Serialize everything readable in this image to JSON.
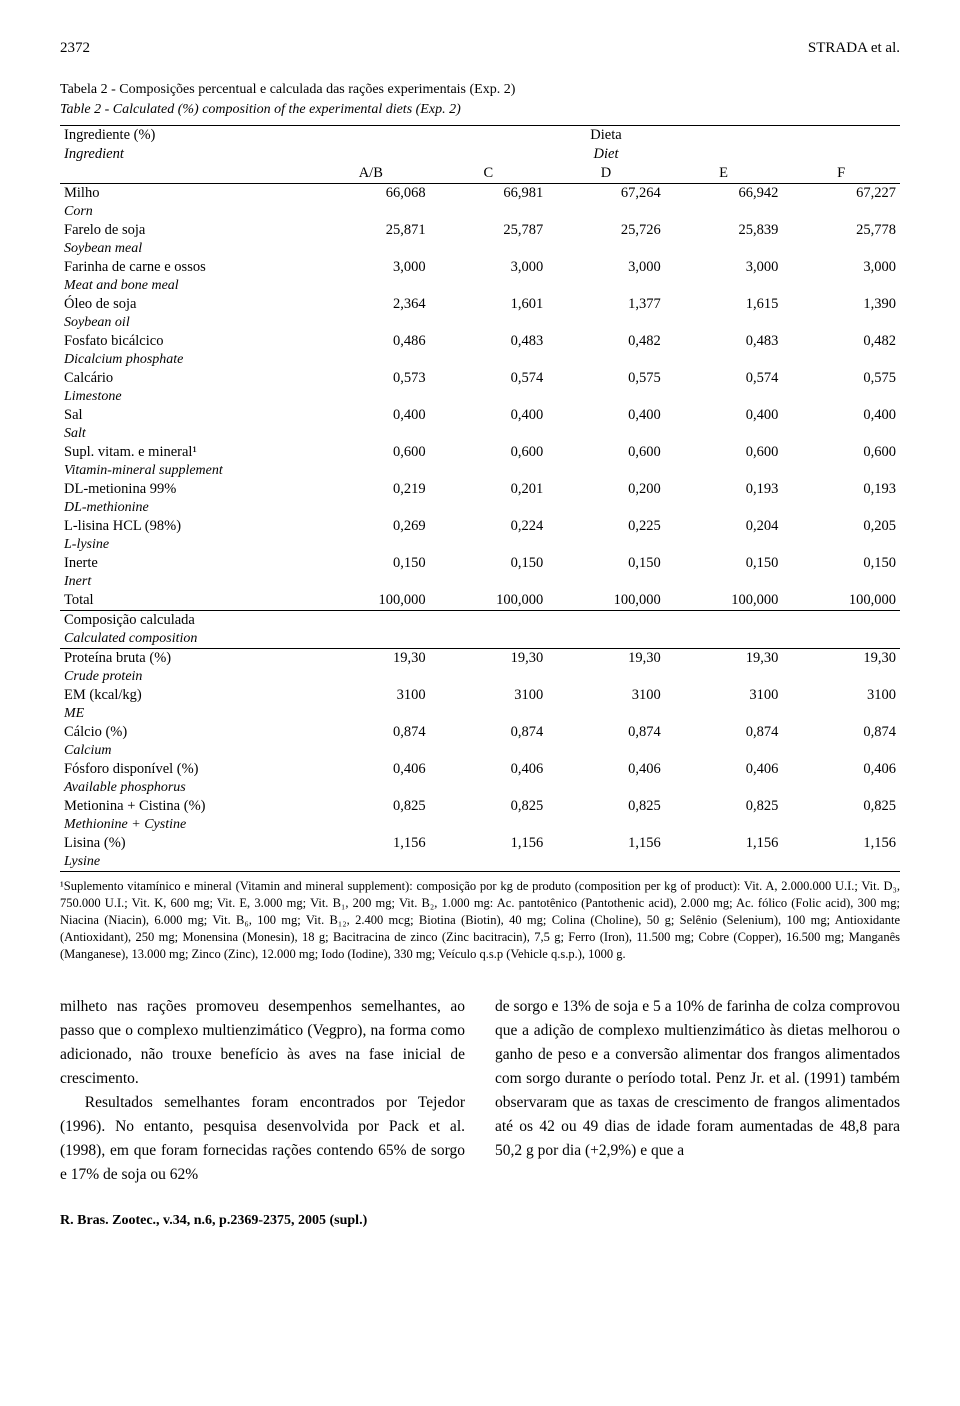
{
  "header": {
    "page_number": "2372",
    "authors": "STRADA et al."
  },
  "caption": {
    "pt": "Tabela 2 - Composições percentual e calculada das rações experimentais (Exp. 2)",
    "en": "Table 2   - Calculated (%) composition of the experimental diets (Exp. 2)"
  },
  "table_header": {
    "ingredient_pt": "Ingrediente (%)",
    "ingredient_en": "Ingredient",
    "diet_pt": "Dieta",
    "diet_en": "Diet",
    "cols": [
      "A/B",
      "C",
      "D",
      "E",
      "F"
    ]
  },
  "rows": [
    {
      "pt": "Milho",
      "en": "Corn",
      "v": [
        "66,068",
        "66,981",
        "67,264",
        "66,942",
        "67,227"
      ]
    },
    {
      "pt": "Farelo de soja",
      "en": "Soybean meal",
      "v": [
        "25,871",
        "25,787",
        "25,726",
        "25,839",
        "25,778"
      ]
    },
    {
      "pt": "Farinha de carne e ossos",
      "en": "Meat and bone meal",
      "v": [
        "3,000",
        "3,000",
        "3,000",
        "3,000",
        "3,000"
      ]
    },
    {
      "pt": "Óleo de soja",
      "en": "Soybean oil",
      "v": [
        "2,364",
        "1,601",
        "1,377",
        "1,615",
        "1,390"
      ]
    },
    {
      "pt": "Fosfato bicálcico",
      "en": "Dicalcium phosphate",
      "v": [
        "0,486",
        "0,483",
        "0,482",
        "0,483",
        "0,482"
      ]
    },
    {
      "pt": "Calcário",
      "en": "Limestone",
      "v": [
        "0,573",
        "0,574",
        "0,575",
        "0,574",
        "0,575"
      ]
    },
    {
      "pt": "Sal",
      "en": "Salt",
      "v": [
        "0,400",
        "0,400",
        "0,400",
        "0,400",
        "0,400"
      ]
    },
    {
      "pt": "Supl. vitam. e mineral¹",
      "en": "Vitamin-mineral supplement",
      "v": [
        "0,600",
        "0,600",
        "0,600",
        "0,600",
        "0,600"
      ]
    },
    {
      "pt": "DL-metionina 99%",
      "en": "DL-methionine",
      "v": [
        "0,219",
        "0,201",
        "0,200",
        "0,193",
        "0,193"
      ]
    },
    {
      "pt": "L-lisina HCL (98%)",
      "en": "L-lysine",
      "v": [
        "0,269",
        "0,224",
        "0,225",
        "0,204",
        "0,205"
      ]
    },
    {
      "pt": "Inerte",
      "en": "Inert",
      "v": [
        "0,150",
        "0,150",
        "0,150",
        "0,150",
        "0,150"
      ]
    },
    {
      "pt": "Total",
      "en": "",
      "v": [
        "100,000",
        "100,000",
        "100,000",
        "100,000",
        "100,000"
      ]
    }
  ],
  "calc_section": {
    "pt": "Composição calculada",
    "en": "Calculated composition"
  },
  "calc_rows": [
    {
      "pt": "Proteína bruta (%)",
      "en": "Crude protein",
      "v": [
        "19,30",
        "19,30",
        "19,30",
        "19,30",
        "19,30"
      ]
    },
    {
      "pt": "EM (kcal/kg)",
      "en": "ME",
      "v": [
        "3100",
        "3100",
        "3100",
        "3100",
        "3100"
      ]
    },
    {
      "pt": "Cálcio (%)",
      "en": "Calcium",
      "v": [
        "0,874",
        "0,874",
        "0,874",
        "0,874",
        "0,874"
      ]
    },
    {
      "pt": "Fósforo disponível (%)",
      "en": "Available phosphorus",
      "v": [
        "0,406",
        "0,406",
        "0,406",
        "0,406",
        "0,406"
      ]
    },
    {
      "pt": "Metionina + Cistina (%)",
      "en": "Methionine + Cystine",
      "v": [
        "0,825",
        "0,825",
        "0,825",
        "0,825",
        "0,825"
      ]
    },
    {
      "pt": "Lisina (%)",
      "en": "Lysine",
      "v": [
        "1,156",
        "1,156",
        "1,156",
        "1,156",
        "1,156"
      ]
    }
  ],
  "footnote": "¹Suplemento vitamínico e mineral (Vitamin and mineral supplement): composição por kg de produto (composition per kg of product): Vit. A, 2.000.000 U.I.; Vit. D₃, 750.000 U.I.; Vit. K, 600 mg; Vit. E, 3.000 mg; Vit. B₁, 200 mg; Vit. B₂, 1.000 mg: Ac. pantotênico (Pantothenic acid), 2.000 mg; Ac. fólico (Folic acid), 300 mg; Niacina (Niacin), 6.000 mg; Vit. B₆, 100 mg; Vit. B₁₂, 2.400 mcg; Biotina (Biotin), 40 mg; Colina (Choline), 50 g; Selênio (Selenium), 100 mg; Antioxidante (Antioxidant), 250 mg; Monensina (Monesin), 18 g; Bacitracina de zinco (Zinc bacitracin), 7,5 g; Ferro (Iron), 11.500 mg; Cobre (Copper), 16.500 mg; Manganês (Manganese), 13.000 mg; Zinco (Zinc), 12.000 mg; Iodo (Iodine), 330 mg; Veículo q.s.p (Vehicle q.s.p.), 1000 g.",
  "body": {
    "left": [
      "milheto nas rações promoveu desempenhos semelhantes, ao passo que o complexo multienzimático (Vegpro), na forma como adicionado, não trouxe benefício às aves na fase inicial de crescimento.",
      "Resultados semelhantes foram encontrados por Tejedor (1996). No entanto, pesquisa desenvolvida por Pack et al. (1998), em que foram fornecidas rações contendo 65% de sorgo e 17% de soja ou 62%"
    ],
    "right": [
      "de sorgo e 13% de soja e 5 a 10% de farinha de colza comprovou que a adição de complexo multienzimático às dietas melhorou o ganho de peso e a conversão alimentar dos frangos alimentados com sorgo durante o período total. Penz Jr. et al. (1991) também observaram que as taxas de crescimento de frangos alimentados até os 42 ou 49 dias de idade foram aumentadas de 48,8 para 50,2 g por dia (+2,9%) e que a"
    ]
  },
  "journal": "R. Bras. Zootec., v.34, n.6, p.2369-2375, 2005 (supl.)"
}
